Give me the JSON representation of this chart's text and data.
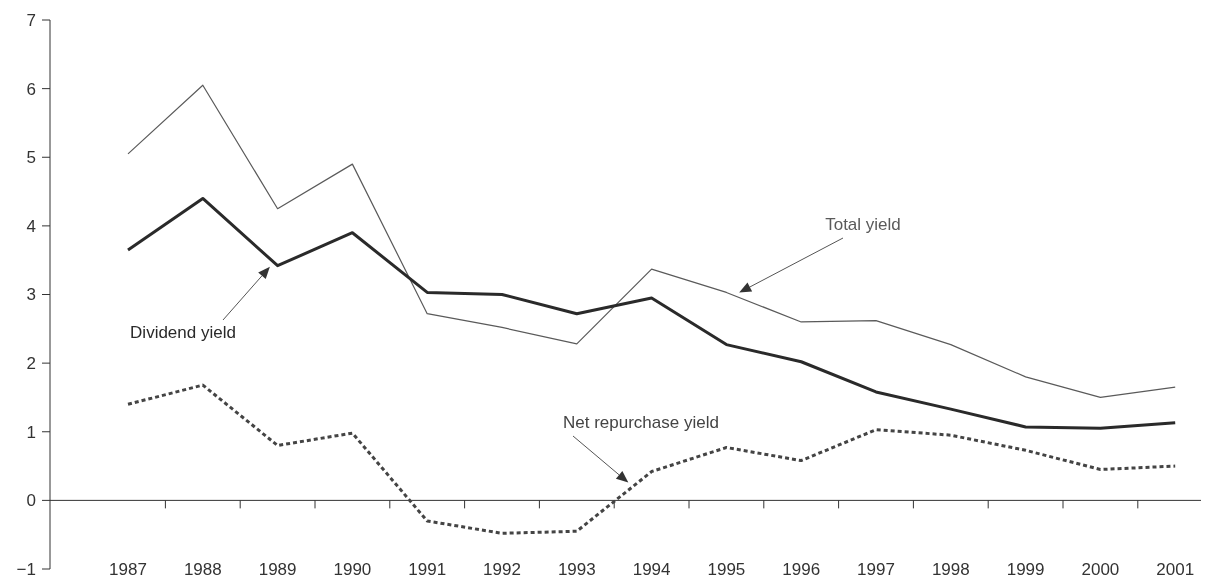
{
  "chart_data": {
    "type": "line",
    "categories": [
      "1987",
      "1988",
      "1989",
      "1990",
      "1991",
      "1992",
      "1993",
      "1994",
      "1995",
      "1996",
      "1997",
      "1998",
      "1999",
      "2000",
      "2001"
    ],
    "series": [
      {
        "name": "Total yield",
        "color": "#5a5a5a",
        "line_style": "solid",
        "values": [
          5.05,
          6.05,
          4.25,
          4.9,
          2.72,
          2.52,
          2.28,
          3.37,
          3.03,
          2.6,
          2.62,
          2.27,
          1.8,
          1.5,
          1.65
        ]
      },
      {
        "name": "Dividend yield",
        "color": "#2a2a2a",
        "line_style": "solid",
        "values": [
          3.65,
          4.4,
          3.42,
          3.9,
          3.03,
          3.0,
          2.72,
          2.95,
          2.27,
          2.02,
          1.58,
          1.33,
          1.07,
          1.05,
          1.13
        ]
      },
      {
        "name": "Net repurchase yield",
        "color": "#444444",
        "line_style": "dotted",
        "values": [
          1.4,
          1.68,
          0.8,
          0.98,
          -0.3,
          -0.48,
          -0.45,
          0.42,
          0.77,
          0.58,
          1.03,
          0.95,
          0.73,
          0.45,
          0.5
        ]
      }
    ],
    "ylim": [
      -1,
      7
    ],
    "yticks": [
      -1,
      0,
      1,
      2,
      3,
      4,
      5,
      6,
      7
    ]
  }
}
